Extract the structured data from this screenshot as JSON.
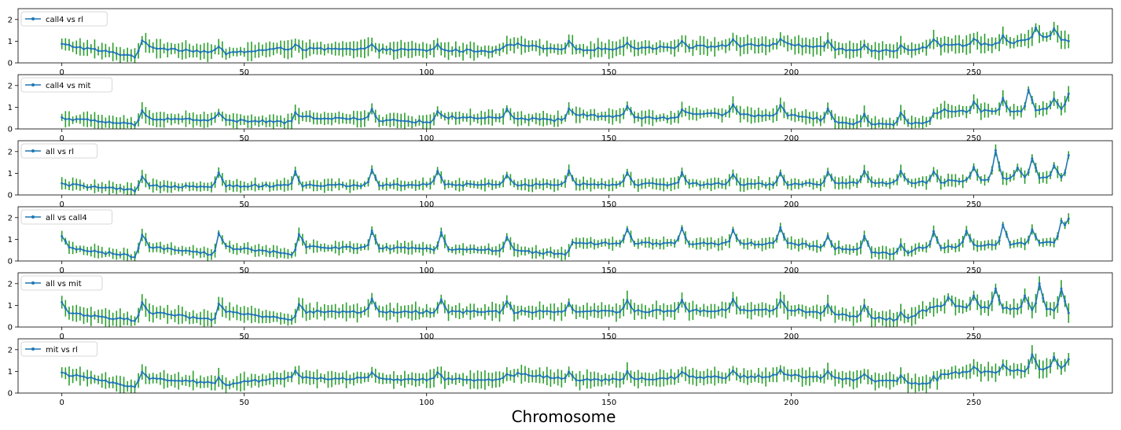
{
  "figure": {
    "xlabel": "Chromosome"
  },
  "colors": {
    "line": "#1f77b4",
    "errorbar": "#2ca02c",
    "axes": "#000000",
    "background": "#ffffff"
  },
  "chart_data": [
    {
      "type": "line",
      "series_name": "call4 vs rl",
      "legend": "top-left",
      "grid": false,
      "xlim": [
        -12,
        288
      ],
      "ylim": [
        0,
        2.5
      ],
      "xticks": [
        0,
        50,
        100,
        150,
        200,
        250
      ],
      "yticks": [
        0,
        1,
        2
      ],
      "n_points": 277,
      "profile": {
        "base": [
          [
            0,
            0.85
          ],
          [
            20,
            0.3
          ],
          [
            22,
            0.75
          ],
          [
            45,
            0.45
          ],
          [
            60,
            0.65
          ],
          [
            120,
            0.55
          ],
          [
            125,
            0.85
          ],
          [
            135,
            0.6
          ],
          [
            200,
            0.85
          ],
          [
            215,
            0.6
          ],
          [
            230,
            0.55
          ],
          [
            240,
            0.8
          ],
          [
            260,
            0.9
          ],
          [
            270,
            1.2
          ],
          [
            276,
            1.0
          ]
        ],
        "peaks": [
          [
            22,
            0.3
          ],
          [
            43,
            0.25
          ],
          [
            64,
            0.25
          ],
          [
            85,
            0.3
          ],
          [
            103,
            0.25
          ],
          [
            122,
            0.2
          ],
          [
            139,
            0.35
          ],
          [
            155,
            0.3
          ],
          [
            170,
            0.3
          ],
          [
            184,
            0.3
          ],
          [
            197,
            0.3
          ],
          [
            210,
            0.3
          ],
          [
            220,
            0.3
          ],
          [
            230,
            0.3
          ],
          [
            239,
            0.35
          ],
          [
            250,
            0.3
          ],
          [
            258,
            0.35
          ],
          [
            267,
            0.5
          ],
          [
            272,
            0.4
          ]
        ],
        "err": 0.35
      }
    },
    {
      "type": "line",
      "series_name": "call4 vs mit",
      "legend": "top-left",
      "grid": false,
      "xlim": [
        -12,
        288
      ],
      "ylim": [
        0,
        2.5
      ],
      "xticks": [
        0,
        50,
        100,
        150,
        200,
        250
      ],
      "yticks": [
        0,
        1,
        2
      ],
      "n_points": 277,
      "profile": {
        "base": [
          [
            0,
            0.5
          ],
          [
            20,
            0.2
          ],
          [
            22,
            0.5
          ],
          [
            64,
            0.3
          ],
          [
            66,
            0.55
          ],
          [
            103,
            0.3
          ],
          [
            105,
            0.55
          ],
          [
            139,
            0.4
          ],
          [
            141,
            0.65
          ],
          [
            170,
            0.45
          ],
          [
            172,
            0.7
          ],
          [
            200,
            0.6
          ],
          [
            220,
            0.2
          ],
          [
            239,
            0.3
          ],
          [
            241,
            0.85
          ],
          [
            260,
            0.8
          ],
          [
            276,
            1.0
          ]
        ],
        "peaks": [
          [
            22,
            0.3
          ],
          [
            43,
            0.35
          ],
          [
            64,
            0.4
          ],
          [
            85,
            0.5
          ],
          [
            103,
            0.5
          ],
          [
            122,
            0.4
          ],
          [
            139,
            0.5
          ],
          [
            155,
            0.5
          ],
          [
            170,
            0.5
          ],
          [
            184,
            0.5
          ],
          [
            197,
            0.5
          ],
          [
            210,
            0.5
          ],
          [
            220,
            0.5
          ],
          [
            230,
            0.5
          ],
          [
            239,
            0.4
          ],
          [
            250,
            0.4
          ],
          [
            258,
            0.6
          ],
          [
            265,
            0.9
          ],
          [
            272,
            0.5
          ],
          [
            276,
            0.6
          ]
        ],
        "err": 0.3
      }
    },
    {
      "type": "line",
      "series_name": "all vs rl",
      "legend": "top-left",
      "grid": false,
      "xlim": [
        -12,
        288
      ],
      "ylim": [
        0,
        2.5
      ],
      "xticks": [
        0,
        50,
        100,
        150,
        200,
        250
      ],
      "yticks": [
        0,
        1,
        2
      ],
      "n_points": 277,
      "profile": {
        "base": [
          [
            0,
            0.5
          ],
          [
            20,
            0.2
          ],
          [
            22,
            0.4
          ],
          [
            140,
            0.5
          ],
          [
            200,
            0.5
          ],
          [
            240,
            0.6
          ],
          [
            260,
            0.8
          ],
          [
            276,
            0.8
          ]
        ],
        "peaks": [
          [
            22,
            0.45
          ],
          [
            43,
            0.65
          ],
          [
            64,
            0.6
          ],
          [
            85,
            0.65
          ],
          [
            103,
            0.65
          ],
          [
            122,
            0.4
          ],
          [
            139,
            0.6
          ],
          [
            155,
            0.5
          ],
          [
            170,
            0.5
          ],
          [
            184,
            0.5
          ],
          [
            197,
            0.5
          ],
          [
            210,
            0.5
          ],
          [
            220,
            0.5
          ],
          [
            230,
            0.5
          ],
          [
            239,
            0.5
          ],
          [
            250,
            0.6
          ],
          [
            256,
            1.3
          ],
          [
            262,
            0.5
          ],
          [
            266,
            0.9
          ],
          [
            272,
            0.6
          ],
          [
            276,
            1.0
          ]
        ],
        "err": 0.25
      }
    },
    {
      "type": "line",
      "series_name": "all vs call4",
      "legend": "top-left",
      "grid": false,
      "xlim": [
        -12,
        288
      ],
      "ylim": [
        0,
        2.5
      ],
      "xticks": [
        0,
        50,
        100,
        150,
        200,
        250
      ],
      "yticks": [
        0,
        1,
        2
      ],
      "n_points": 277,
      "profile": {
        "base": [
          [
            0,
            1.1
          ],
          [
            2,
            0.6
          ],
          [
            20,
            0.2
          ],
          [
            23,
            0.65
          ],
          [
            42,
            0.3
          ],
          [
            44,
            0.65
          ],
          [
            64,
            0.3
          ],
          [
            66,
            0.65
          ],
          [
            122,
            0.5
          ],
          [
            140,
            0.3
          ],
          [
            142,
            0.8
          ],
          [
            200,
            0.8
          ],
          [
            230,
            0.3
          ],
          [
            235,
            0.6
          ],
          [
            276,
            0.9
          ]
        ],
        "peaks": [
          [
            22,
            0.75
          ],
          [
            43,
            0.75
          ],
          [
            65,
            0.7
          ],
          [
            85,
            0.8
          ],
          [
            104,
            0.8
          ],
          [
            122,
            0.6
          ],
          [
            140,
            0.6
          ],
          [
            155,
            0.7
          ],
          [
            170,
            0.7
          ],
          [
            184,
            0.6
          ],
          [
            197,
            0.7
          ],
          [
            210,
            0.5
          ],
          [
            220,
            0.7
          ],
          [
            230,
            0.4
          ],
          [
            239,
            0.7
          ],
          [
            248,
            0.7
          ],
          [
            258,
            0.9
          ],
          [
            266,
            0.6
          ],
          [
            274,
            1.0
          ],
          [
            276,
            1.0
          ]
        ],
        "err": 0.25
      }
    },
    {
      "type": "line",
      "series_name": "all vs mit",
      "legend": "top-left",
      "grid": false,
      "xlim": [
        -12,
        288
      ],
      "ylim": [
        0,
        2.5
      ],
      "xticks": [
        0,
        50,
        100,
        150,
        200,
        250
      ],
      "yticks": [
        0,
        1,
        2
      ],
      "n_points": 277,
      "profile": {
        "base": [
          [
            0,
            1.1
          ],
          [
            2,
            0.65
          ],
          [
            20,
            0.3
          ],
          [
            23,
            0.7
          ],
          [
            42,
            0.3
          ],
          [
            44,
            0.7
          ],
          [
            64,
            0.35
          ],
          [
            66,
            0.7
          ],
          [
            140,
            0.7
          ],
          [
            200,
            0.8
          ],
          [
            230,
            0.3
          ],
          [
            240,
            1.0
          ],
          [
            270,
            0.8
          ],
          [
            276,
            0.7
          ]
        ],
        "peaks": [
          [
            22,
            0.55
          ],
          [
            43,
            0.55
          ],
          [
            65,
            0.5
          ],
          [
            85,
            0.55
          ],
          [
            104,
            0.55
          ],
          [
            122,
            0.5
          ],
          [
            139,
            0.4
          ],
          [
            155,
            0.5
          ],
          [
            170,
            0.5
          ],
          [
            184,
            0.5
          ],
          [
            197,
            0.5
          ],
          [
            210,
            0.4
          ],
          [
            220,
            0.5
          ],
          [
            230,
            0.4
          ],
          [
            243,
            0.4
          ],
          [
            250,
            0.5
          ],
          [
            256,
            0.9
          ],
          [
            264,
            0.6
          ],
          [
            268,
            1.2
          ],
          [
            274,
            1.0
          ]
        ],
        "err": 0.35
      }
    },
    {
      "type": "line",
      "series_name": "mit vs rl",
      "legend": "top-left",
      "grid": false,
      "xlim": [
        -12,
        288
      ],
      "ylim": [
        0,
        2.5
      ],
      "xticks": [
        0,
        50,
        100,
        150,
        200,
        250
      ],
      "yticks": [
        0,
        1,
        2
      ],
      "n_points": 277,
      "profile": {
        "base": [
          [
            0,
            0.9
          ],
          [
            20,
            0.3
          ],
          [
            22,
            0.7
          ],
          [
            45,
            0.4
          ],
          [
            60,
            0.7
          ],
          [
            120,
            0.6
          ],
          [
            125,
            0.9
          ],
          [
            140,
            0.6
          ],
          [
            200,
            0.8
          ],
          [
            230,
            0.5
          ],
          [
            240,
            0.4
          ],
          [
            241,
            0.9
          ],
          [
            260,
            1.0
          ],
          [
            276,
            1.2
          ]
        ],
        "peaks": [
          [
            22,
            0.3
          ],
          [
            43,
            0.3
          ],
          [
            64,
            0.3
          ],
          [
            85,
            0.3
          ],
          [
            103,
            0.3
          ],
          [
            122,
            0.2
          ],
          [
            139,
            0.35
          ],
          [
            155,
            0.3
          ],
          [
            170,
            0.3
          ],
          [
            184,
            0.3
          ],
          [
            197,
            0.3
          ],
          [
            210,
            0.3
          ],
          [
            220,
            0.3
          ],
          [
            230,
            0.3
          ],
          [
            239,
            0.3
          ],
          [
            250,
            0.3
          ],
          [
            258,
            0.35
          ],
          [
            266,
            0.7
          ],
          [
            272,
            0.5
          ],
          [
            276,
            0.4
          ]
        ],
        "err": 0.35
      }
    }
  ]
}
